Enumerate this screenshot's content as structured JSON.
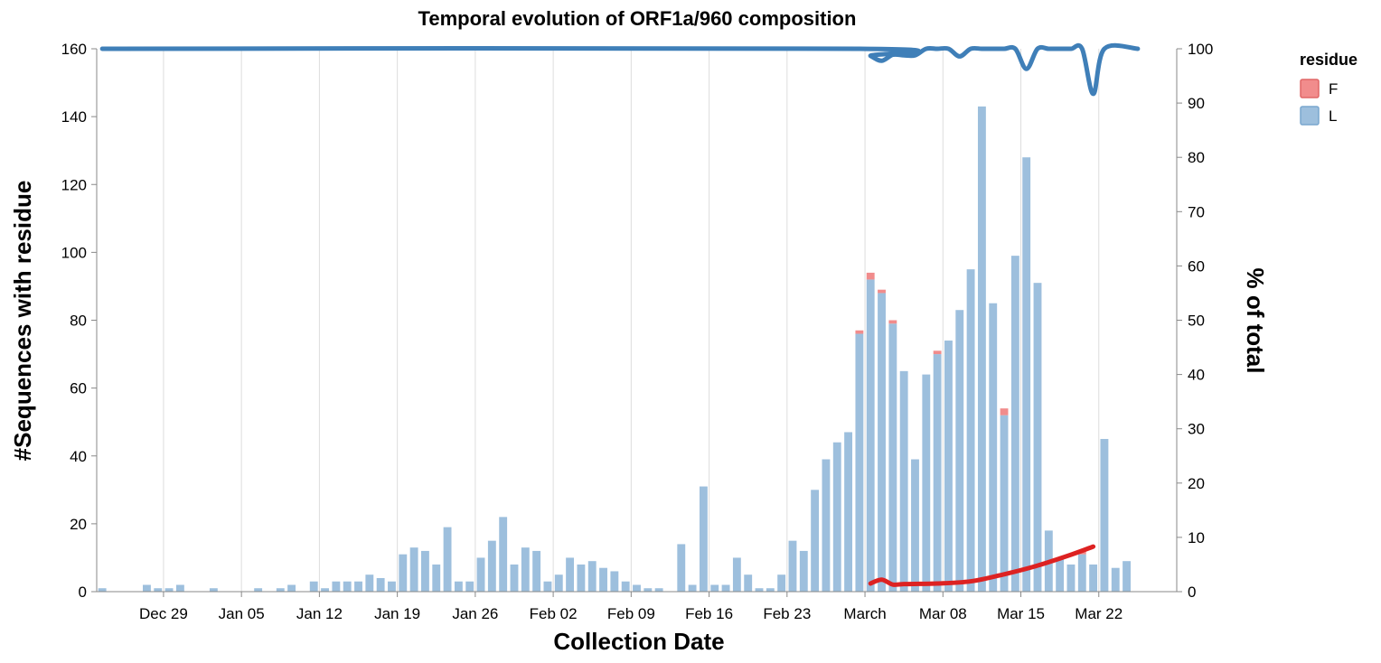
{
  "chart_data": {
    "type": "bar",
    "title": "Temporal evolution of ORF1a/960 composition",
    "xlabel": "Collection Date",
    "ylabel": "#Sequences with residue",
    "y2label": "% of total",
    "x_tick_labels": [
      "Dec 29",
      "Jan 05",
      "Jan 12",
      "Jan 19",
      "Jan 26",
      "Feb 02",
      "Feb 09",
      "Feb 16",
      "Feb 23",
      "March",
      "Mar 08",
      "Mar 15",
      "Mar 22"
    ],
    "x_tick_days": [
      6,
      13,
      20,
      27,
      34,
      41,
      48,
      55,
      62,
      69,
      76,
      83,
      90
    ],
    "xlim": [
      0,
      97
    ],
    "ylim": [
      0,
      160
    ],
    "y_ticks": [
      0,
      20,
      40,
      60,
      80,
      100,
      120,
      140,
      160
    ],
    "y2lim": [
      0,
      100
    ],
    "y2_ticks": [
      0,
      10,
      20,
      30,
      40,
      50,
      60,
      70,
      80,
      90,
      100
    ],
    "grid": "vertical",
    "legend": {
      "title": "residue",
      "position": "top-right",
      "items": [
        {
          "label": "F",
          "color": "#f18c8c"
        },
        {
          "label": "L",
          "color": "#9dbfdd"
        }
      ]
    },
    "colors": {
      "bar_F": "#f18c8c",
      "bar_L": "#9dbfdd",
      "line_L": "#3f7fb8",
      "line_F": "#dd2222"
    },
    "categories": [
      "2019-12-24",
      "2019-12-25",
      "2019-12-26",
      "2019-12-27",
      "2019-12-28",
      "2019-12-29",
      "2019-12-30",
      "2019-12-31",
      "2020-01-01",
      "2020-01-02",
      "2020-01-03",
      "2020-01-04",
      "2020-01-05",
      "2020-01-06",
      "2020-01-07",
      "2020-01-08",
      "2020-01-09",
      "2020-01-10",
      "2020-01-11",
      "2020-01-12",
      "2020-01-13",
      "2020-01-14",
      "2020-01-15",
      "2020-01-16",
      "2020-01-17",
      "2020-01-18",
      "2020-01-19",
      "2020-01-20",
      "2020-01-21",
      "2020-01-22",
      "2020-01-23",
      "2020-01-24",
      "2020-01-25",
      "2020-01-26",
      "2020-01-27",
      "2020-01-28",
      "2020-01-29",
      "2020-01-30",
      "2020-01-31",
      "2020-02-01",
      "2020-02-02",
      "2020-02-03",
      "2020-02-04",
      "2020-02-05",
      "2020-02-06",
      "2020-02-07",
      "2020-02-08",
      "2020-02-09",
      "2020-02-10",
      "2020-02-11",
      "2020-02-12",
      "2020-02-13",
      "2020-02-14",
      "2020-02-15",
      "2020-02-16",
      "2020-02-17",
      "2020-02-18",
      "2020-02-19",
      "2020-02-20",
      "2020-02-21",
      "2020-02-22",
      "2020-02-23",
      "2020-02-24",
      "2020-02-25",
      "2020-02-26",
      "2020-02-27",
      "2020-02-28",
      "2020-02-29",
      "2020-03-01",
      "2020-03-02",
      "2020-03-03",
      "2020-03-04",
      "2020-03-05",
      "2020-03-06",
      "2020-03-07",
      "2020-03-08",
      "2020-03-09",
      "2020-03-10",
      "2020-03-11",
      "2020-03-12",
      "2020-03-13",
      "2020-03-14",
      "2020-03-15",
      "2020-03-16",
      "2020-03-17",
      "2020-03-18",
      "2020-03-19",
      "2020-03-20",
      "2020-03-21",
      "2020-03-22",
      "2020-03-23",
      "2020-03-24",
      "2020-03-25",
      "2020-03-26"
    ],
    "series": [
      {
        "name": "L",
        "values": [
          1,
          0,
          0,
          0,
          2,
          1,
          1,
          2,
          0,
          0,
          1,
          0,
          0,
          0,
          1,
          0,
          1,
          2,
          0,
          3,
          1,
          3,
          3,
          3,
          5,
          4,
          3,
          11,
          13,
          12,
          8,
          19,
          3,
          3,
          10,
          15,
          22,
          8,
          13,
          12,
          3,
          5,
          10,
          8,
          9,
          7,
          6,
          3,
          2,
          1,
          1,
          0,
          14,
          2,
          31,
          2,
          2,
          10,
          5,
          1,
          1,
          5,
          15,
          12,
          30,
          39,
          44,
          47,
          76,
          92,
          88,
          79,
          65,
          39,
          64,
          70,
          74,
          83,
          95,
          143,
          85,
          52,
          99,
          128,
          91,
          18,
          10,
          8,
          11,
          8,
          45,
          7,
          9,
          0
        ]
      },
      {
        "name": "F",
        "values": [
          0,
          0,
          0,
          0,
          0,
          0,
          0,
          0,
          0,
          0,
          0,
          0,
          0,
          0,
          0,
          0,
          0,
          0,
          0,
          0,
          0,
          0,
          0,
          0,
          0,
          0,
          0,
          0,
          0,
          0,
          0,
          0,
          0,
          0,
          0,
          0,
          0,
          0,
          0,
          0,
          0,
          0,
          0,
          0,
          0,
          0,
          0,
          0,
          0,
          0,
          0,
          0,
          0,
          0,
          0,
          0,
          0,
          0,
          0,
          0,
          0,
          0,
          0,
          0,
          0,
          0,
          0,
          0,
          1,
          2,
          1,
          1,
          0,
          0,
          0,
          1,
          0,
          0,
          0,
          0,
          0,
          2,
          0,
          0,
          0,
          0,
          0,
          0,
          1,
          0,
          0,
          0,
          0,
          0
        ]
      }
    ],
    "pct_lines": [
      {
        "name": "L",
        "x": [
          "2019-12-24",
          "2020-03-01",
          "2020-03-02",
          "2020-03-03",
          "2020-03-04",
          "2020-03-05",
          "2020-03-06",
          "2020-03-07",
          "2020-03-08",
          "2020-03-09",
          "2020-03-10",
          "2020-03-11",
          "2020-03-12",
          "2020-03-13",
          "2020-03-14",
          "2020-03-15",
          "2020-03-16",
          "2020-03-17",
          "2020-03-18",
          "2020-03-19",
          "2020-03-20",
          "2020-03-21",
          "2020-03-22",
          "2020-03-23",
          "2020-03-26"
        ],
        "values": [
          100,
          100,
          98.7,
          97.8,
          98.9,
          98.8,
          98.8,
          100,
          100,
          100,
          98.6,
          100,
          100,
          100,
          100,
          100,
          96.3,
          100,
          100,
          100,
          100,
          100,
          91.7,
          100,
          100
        ]
      },
      {
        "name": "F",
        "x": [
          "2020-03-02",
          "2020-03-03",
          "2020-03-04",
          "2020-03-05",
          "2020-03-08",
          "2020-03-11",
          "2020-03-14",
          "2020-03-17",
          "2020-03-20",
          "2020-03-22"
        ],
        "values": [
          1.5,
          2.2,
          1.3,
          1.4,
          1.5,
          1.9,
          3.2,
          4.8,
          6.8,
          8.3
        ]
      }
    ]
  }
}
